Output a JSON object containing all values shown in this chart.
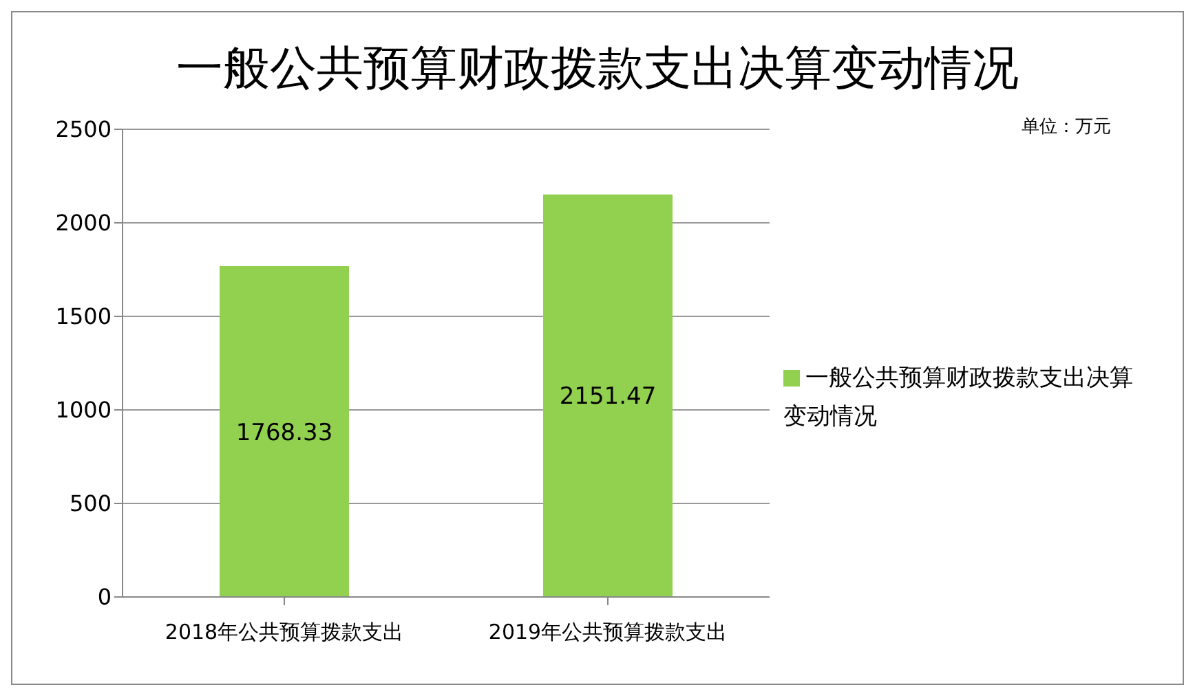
{
  "chart_data": {
    "type": "bar",
    "title": "一般公共预算财政拨款支出决算变动情况",
    "annotations": [
      "单位：万元"
    ],
    "categories": [
      "2018年公共预算拨款支出",
      "2019年公共预算拨款支出"
    ],
    "series": [
      {
        "name": "一般公共预算财政拨款支出决算变动情况",
        "color": "#92d050",
        "values": [
          1768.33,
          2151.47
        ]
      }
    ],
    "ylim": [
      0,
      2500
    ],
    "yticks": [
      0,
      500,
      1000,
      1500,
      2000,
      2500
    ],
    "grid": "y",
    "legend": "right",
    "data_labels": true
  }
}
